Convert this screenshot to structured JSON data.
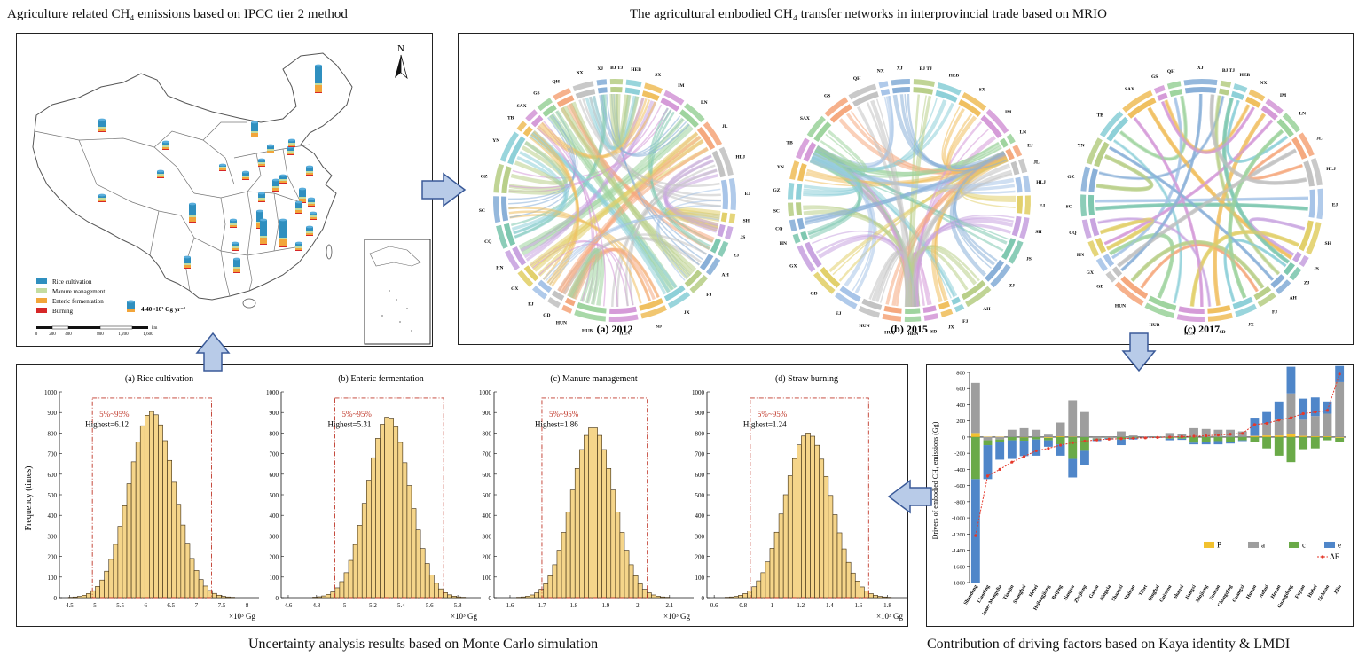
{
  "headings": {
    "map": "Agriculture related CH₄ emissions based on IPCC tier 2 method",
    "network": "The agricultural embodied CH₄ transfer networks in interprovincial trade based on MRIO",
    "uncertainty": "Uncertainty analysis results based on Monte Carlo simulation",
    "drivers": "Contribution of driving factors based on Kaya identity & LMDI"
  },
  "map": {
    "north": "N",
    "legend": [
      {
        "label": "Rice cultivation",
        "color": "#2f8fbf"
      },
      {
        "label": "Manure management",
        "color": "#c4dca0"
      },
      {
        "label": "Enteric fermentation",
        "color": "#f2a53a"
      },
      {
        "label": "Burning",
        "color": "#d62728"
      }
    ],
    "scale_value": "4.40×10³ Gg yr⁻¹",
    "scale_ticks": [
      "0",
      "200",
      "400",
      "800",
      "1,200",
      "1,600"
    ],
    "scale_unit": "km"
  },
  "networks": [
    {
      "caption": "(a) 2012",
      "labels": [
        "XJ",
        "BJ TJ",
        "HEB",
        "SX",
        "IM",
        "LN",
        "JL",
        "HLJ",
        "EJ",
        "SH",
        "JS",
        "ZJ",
        "AH",
        "FJ",
        "JX",
        "SD",
        "HEN",
        "HUB",
        "HUN",
        "GD",
        "EJ",
        "GX",
        "HN",
        "CQ",
        "SC",
        "GZ",
        "YN",
        "TB",
        "SAX",
        "GS",
        "QH",
        "NX"
      ]
    },
    {
      "caption": "(b) 2015",
      "labels": [
        "XJ",
        "BJ TJ",
        "HEB",
        "SX",
        "IM",
        "LN",
        "EJ",
        "JL",
        "HLJ",
        "EJ",
        "SH",
        "JS",
        "ZJ",
        "AH",
        "FJ",
        "JX",
        "SD",
        "HEN",
        "HUB",
        "HUN",
        "EJ",
        "GD",
        "GX",
        "HN",
        "CQ",
        "SC",
        "GZ",
        "YN",
        "TB",
        "SAX",
        "GS",
        "QH",
        "NX"
      ]
    },
    {
      "caption": "(c) 2017",
      "labels": [
        "XJ",
        "BJ TJ",
        "HEB",
        "NX",
        "IM",
        "LN",
        "JL",
        "HLJ",
        "EJ",
        "SH",
        "JS",
        "ZJ",
        "AH",
        "FJ",
        "JX",
        "SD",
        "HEN",
        "HUB",
        "HUN",
        "GD",
        "GX",
        "HN",
        "CQ",
        "SC",
        "GZ",
        "YN",
        "TB",
        "SAX",
        "GS",
        "QH"
      ]
    }
  ],
  "histograms": [
    {
      "title": "(a) Rice cultivation",
      "ci_label": "5%~95%",
      "highest": "Highest=6.12",
      "xticks": [
        "4.5",
        "5",
        "5.5",
        "6",
        "6.5",
        "7",
        "7.5",
        "8"
      ],
      "xmin": 4.3,
      "xmax": 8.2,
      "mean": 6.12,
      "sd": 0.45,
      "ci": [
        4.95,
        7.3
      ],
      "peak": 905
    },
    {
      "title": "(b) Enteric fermentation",
      "ci_label": "5%~95%",
      "highest": "Highest=5.31",
      "xticks": [
        "4.6",
        "4.8",
        "5",
        "5.2",
        "5.4",
        "5.6",
        "5.8"
      ],
      "xmin": 4.55,
      "xmax": 5.95,
      "mean": 5.31,
      "sd": 0.15,
      "ci": [
        4.93,
        5.7
      ],
      "peak": 880
    },
    {
      "title": "(c) Manure management",
      "ci_label": "5%~95%",
      "highest": "Highest=1.86",
      "xticks": [
        "1.6",
        "1.7",
        "1.8",
        "1.9",
        "2",
        "2.1"
      ],
      "xmin": 1.55,
      "xmax": 2.17,
      "mean": 1.86,
      "sd": 0.066,
      "ci": [
        1.7,
        2.03
      ],
      "peak": 830
    },
    {
      "title": "(d) Straw burning",
      "ci_label": "5%~95%",
      "highest": "Highest=1.24",
      "xticks": [
        "0.6",
        "0.8",
        "1",
        "1.2",
        "1.4",
        "1.6",
        "1.8"
      ],
      "xmin": 0.55,
      "xmax": 1.92,
      "mean": 1.25,
      "sd": 0.16,
      "ci": [
        0.85,
        1.67
      ],
      "peak": 800
    }
  ],
  "hist_ylabel": "Frequency (times)",
  "hist_yticks": [
    "0",
    "100",
    "200",
    "300",
    "400",
    "500",
    "600",
    "700",
    "800",
    "900",
    "1000"
  ],
  "hist_xunit": "×10³ Gg",
  "chart_data": {
    "type": "bar",
    "ylabel": "Drivers of embodied CH₄ emissions (Gg)",
    "ylim": [
      -1800,
      800
    ],
    "yticks": [
      "800",
      "600",
      "400",
      "200",
      "0",
      "-200",
      "-400",
      "-600",
      "-800",
      "-1000",
      "-1200",
      "-1400",
      "-1600",
      "-1800"
    ],
    "categories": [
      "Shandong",
      "Liaoning",
      "Inner Mongolia",
      "Tianjin",
      "Shanghai",
      "Hebei",
      "Heilongjiang",
      "Beijing",
      "Jiangsu",
      "Zhejiang",
      "Gansu",
      "Ningxia",
      "Shaanxi",
      "Hainan",
      "Tibet",
      "Qinghai",
      "Guizhou",
      "Shanxi",
      "Jiangxi",
      "Xinjiang",
      "Yunnan",
      "Chongqing",
      "Guangxi",
      "Hunan",
      "Anhui",
      "Henan",
      "Guangdong",
      "Fujian",
      "Hubei",
      "Sichuan",
      "Jilin"
    ],
    "series": [
      {
        "name": "P",
        "color": "#f2c12e",
        "values": [
          50,
          5,
          5,
          0,
          -5,
          0,
          -10,
          10,
          5,
          0,
          0,
          0,
          0,
          0,
          0,
          0,
          0,
          0,
          0,
          0,
          0,
          0,
          0,
          10,
          20,
          20,
          40,
          15,
          10,
          10,
          -10
        ]
      },
      {
        "name": "a",
        "color": "#9e9e9e",
        "values": [
          620,
          -40,
          -30,
          90,
          110,
          90,
          30,
          170,
          450,
          310,
          -20,
          -10,
          70,
          20,
          0,
          0,
          50,
          40,
          110,
          100,
          90,
          90,
          70,
          10,
          150,
          200,
          500,
          200,
          250,
          280,
          680
        ]
      },
      {
        "name": "c",
        "color": "#6aaa48",
        "values": [
          -520,
          -60,
          -30,
          -40,
          -40,
          -30,
          -30,
          -90,
          -270,
          -170,
          -10,
          -5,
          -30,
          -10,
          0,
          -5,
          -20,
          -20,
          -70,
          -60,
          -50,
          -60,
          -40,
          -60,
          -140,
          -230,
          -310,
          -150,
          -140,
          -40,
          -50
        ]
      },
      {
        "name": "e",
        "color": "#4f86c9",
        "values": [
          -1280,
          -420,
          -220,
          -230,
          -190,
          -200,
          -80,
          -140,
          -230,
          -180,
          -20,
          -15,
          -70,
          -20,
          -5,
          -5,
          -20,
          -15,
          -20,
          -30,
          -40,
          -20,
          -10,
          220,
          140,
          220,
          330,
          260,
          230,
          150,
          200
        ]
      },
      {
        "name": "ΔE",
        "color": "#e5392b",
        "values": [
          -1220,
          -480,
          -400,
          -310,
          -240,
          -170,
          -140,
          -100,
          -70,
          -50,
          -35,
          -25,
          -20,
          -15,
          -10,
          -5,
          0,
          5,
          10,
          15,
          25,
          35,
          45,
          155,
          170,
          210,
          240,
          290,
          310,
          330,
          780
        ]
      }
    ]
  }
}
